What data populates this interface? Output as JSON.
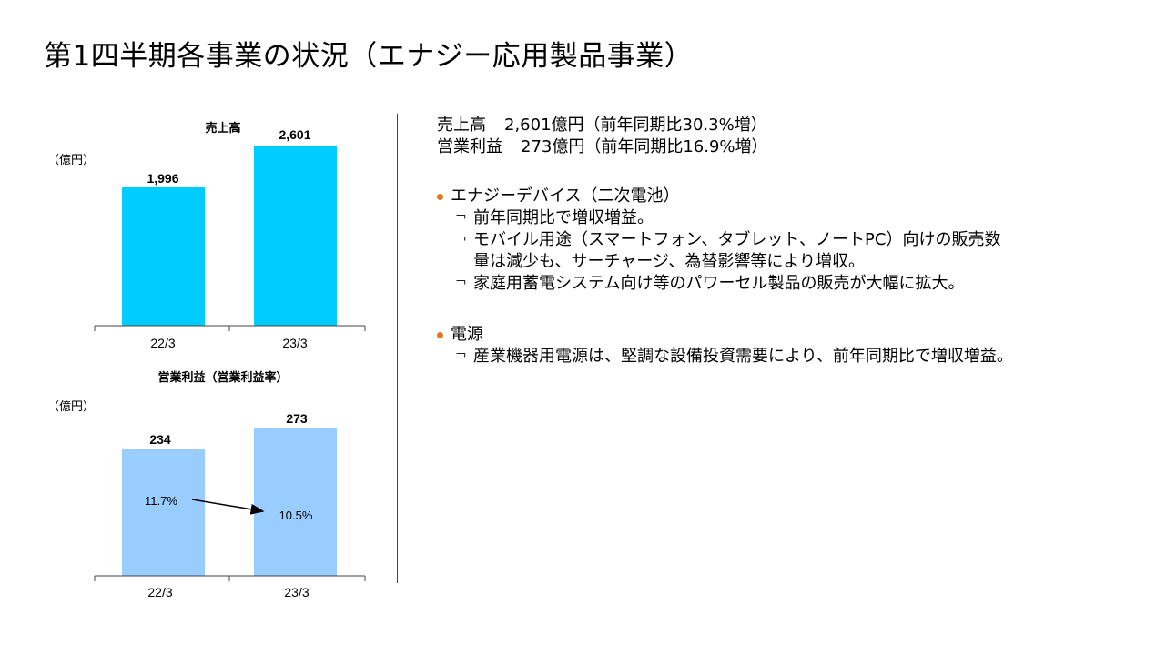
{
  "title": "第1四半期各事業の状況（エナジー応用製品事業）",
  "charts": {
    "sales": {
      "title": "売上高",
      "unit": "（億円）",
      "categories": [
        "22/3",
        "23/3"
      ],
      "values": [
        "1,996",
        "2,601"
      ],
      "color": "#00CCFF"
    },
    "profit": {
      "title": "営業利益（営業利益率）",
      "unit": "（億円）",
      "categories": [
        "22/3",
        "23/3"
      ],
      "values": [
        "234",
        "273"
      ],
      "margins": [
        "11.7%",
        "10.5%"
      ],
      "color": "#99CCFF"
    }
  },
  "chart_data": [
    {
      "type": "bar",
      "title": "売上高",
      "ylabel": "（億円）",
      "categories": [
        "22/3",
        "23/3"
      ],
      "values": [
        1996,
        2601
      ],
      "ylim": [
        0,
        2800
      ]
    },
    {
      "type": "bar",
      "title": "営業利益（営業利益率）",
      "ylabel": "（億円）",
      "categories": [
        "22/3",
        "23/3"
      ],
      "values": [
        234,
        273
      ],
      "ylim": [
        0,
        290
      ],
      "annotations": [
        "11.7%",
        "10.5%"
      ]
    }
  ],
  "summary": {
    "sales_label": "売上高",
    "sales_value": "2,601億円（前年同期比30.3%増）",
    "profit_label": "営業利益",
    "profit_value": "273億円（前年同期比16.9%増）"
  },
  "sections": {
    "energy_device": {
      "heading": "エナジーデバイス（二次電池）",
      "items": [
        "前年同期比で増収増益。",
        "モバイル用途（スマートフォン、タブレット、ノートPC）向けの販売数",
        "量は減少も、サーチャージ、為替影響等により増収。",
        "家庭用蓄電システム向け等のパワーセル製品の販売が大幅に拡大。"
      ]
    },
    "power_supply": {
      "heading": "電源",
      "items": [
        "産業機器用電源は、堅調な設備投資需要により、前年同期比で増収増益。"
      ]
    }
  },
  "bullet_mark": "￢",
  "bullet_color": "#E07820"
}
